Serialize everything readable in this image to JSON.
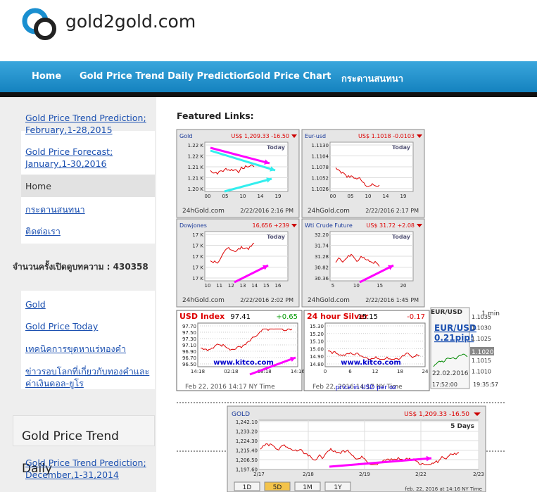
{
  "header": {
    "site_name": "gold2gold.com"
  },
  "nav": [
    "Home",
    "Gold Price Trend Daily Prediction",
    "Gold Price Chart",
    "กระดานสนทนา"
  ],
  "sidebar": {
    "links": [
      "Gold Price Trend Prediction; February,1-28,2015",
      "Gold Price Forecast; January,1-30,2016",
      "Home",
      "กระดานสนทนา",
      "ติดต่อเรา"
    ],
    "counter_label": "จำนวนครั้งเปิดดูบทความ :",
    "counter_value": 430358,
    "links2": [
      "Gold",
      "Gold Price Today",
      "เทคนิคการขุดหาแร่ทองคำ",
      "ข่าวรอบโลกที่เกี่ยวกับทองคำและค่าเงินดอล-ยูโร"
    ],
    "section_title": "Gold Price Trend Daily",
    "links3": [
      "Gold Price Trend Prediction; December,1-31,2014"
    ]
  },
  "main": {
    "heading": "Featured Links:",
    "widgets": [
      {
        "name": "Gold",
        "quote": "US$ 1,209.33 -16.50",
        "today": "Today",
        "yticks": [
          "1.22 K",
          "1.22 K",
          "1.21 K",
          "1.21 K",
          "1.20 K"
        ],
        "xticks": [
          "00",
          "05",
          "10",
          "14",
          "19"
        ],
        "footer": "24hGold.com",
        "date": "2/22/2016 2:16 PM"
      },
      {
        "name": "Eur-usd",
        "quote": "US$ 1.1018 -0.0103",
        "today": "Today",
        "yticks": [
          "1.1130",
          "1.1104",
          "1.1078",
          "1.1052",
          "1.1026"
        ],
        "xticks": [
          "00",
          "05",
          "10",
          "14",
          "19"
        ],
        "footer": "24hGold.com",
        "date": "2/22/2016 2:17 PM"
      },
      {
        "name": "Dowjones",
        "quote": "16,656 +239",
        "today": "Today",
        "yticks": [
          "17 K",
          "17 K",
          "17 K",
          "17 K",
          "17 K"
        ],
        "xticks": [
          "10",
          "11",
          "12",
          "13",
          "14",
          "15",
          "16"
        ],
        "footer": "24hGold.com",
        "date": "2/22/2016 2:02 PM"
      },
      {
        "name": "Wti Crude Future",
        "quote": "US$ 31.72 +2.08",
        "today": "Today",
        "yticks": [
          "32.20",
          "31.74",
          "31.28",
          "30.82",
          "30.36"
        ],
        "xticks": [
          "5",
          "10",
          "15",
          "20"
        ],
        "footer": "24hGold.com",
        "date": "2/22/2016 1:45 PM"
      }
    ],
    "usd_index": {
      "title": "USD Index",
      "value": "97.41",
      "change": "+0.65",
      "yticks": [
        "97.70",
        "97.50",
        "97.30",
        "97.10",
        "96.90",
        "96.70",
        "96.50"
      ],
      "xticks": [
        "14:18",
        "02:18",
        "08:18",
        "14:16"
      ],
      "watermark": "www.kitco.com",
      "footer": "Feb 22, 2016 14:17 NY Time"
    },
    "silver": {
      "title": "24 hour Silver",
      "value": "15.15",
      "change": "-0.17",
      "yticks": [
        "15.30",
        "15.20",
        "15.10",
        "15.00",
        "14.90",
        "14.80"
      ],
      "xticks": [
        "0",
        "6",
        "12",
        "18",
        "24"
      ],
      "watermark": "www.kitco.com",
      "footer": "Feb 22, 2016 14:17 NY Time",
      "unit": "price in USD per oz"
    },
    "eurusd": {
      "title": "EUR/USD",
      "period": "1 min",
      "link1": "EUR/USD",
      "link2": "0.21pip!",
      "price": "1.1020",
      "yticks": [
        "1.1035",
        "1.1030",
        "1.1025",
        "1.1015",
        "1.1010"
      ],
      "date": "22.02.2016",
      "times": [
        "17:52:00",
        "19:35:57"
      ]
    },
    "gold5d": {
      "title": "GOLD",
      "quote": "US$ 1,209.33 -16.50",
      "period": "5 Days",
      "yticks": [
        "1,242.10",
        "1,233.20",
        "1,224.30",
        "1,215.40",
        "1,206.50",
        "1,197.60"
      ],
      "xticks": [
        "2/17",
        "2/18",
        "2/19",
        "2/22",
        "2/23"
      ],
      "buttons": [
        "1D",
        "5D",
        "1M",
        "1Y"
      ],
      "footer": "feb. 22, 2016 at 14:16 NY Time"
    }
  }
}
